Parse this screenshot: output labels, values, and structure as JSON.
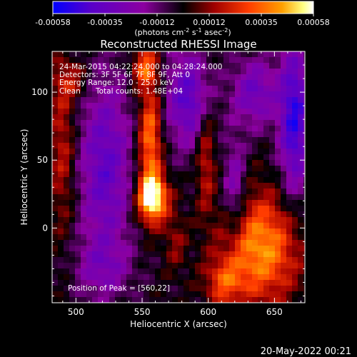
{
  "colorbar": {
    "ticks": [
      "-0.00058",
      "-0.00035",
      "-0.00012",
      "0.00012",
      "0.00035",
      "0.00058"
    ],
    "units_prefix": "(photons cm",
    "units_exp1": "-2",
    "units_mid": " s",
    "units_exp2": "-1",
    "units_mid2": " asec",
    "units_exp3": "-2",
    "units_suffix": ")",
    "colors": [
      "#0000ff",
      "#5a00c8",
      "#8c00a0",
      "#000000",
      "#a00000",
      "#ff3c00",
      "#ffa000",
      "#ffff80",
      "#ffffff"
    ]
  },
  "chart_data": {
    "type": "heatmap",
    "title": "Reconstructed RHESSI Image",
    "xlabel": "Heliocentric X (arcsec)",
    "ylabel": "Heliocentric Y (arcsec)",
    "xlim": [
      482,
      673
    ],
    "ylim": [
      -55,
      130
    ],
    "x_ticks": [
      500,
      550,
      600,
      650
    ],
    "y_ticks": [
      0,
      50,
      100
    ],
    "colorbar_range": [
      -0.00058,
      0.00058
    ],
    "annotations": {
      "time_range": "24-Mar-2015 04:22:24.000 to 04:28:24.000",
      "detectors": "Detectors: 3F 5F 6F 7F 8F 9F, Att 0",
      "energy": "Energy Range: 12.0 - 25.0 keV",
      "clean_label": "Clean",
      "counts": "Total counts: 1.48E+04",
      "peak": "Position of Peak = [560,22]"
    },
    "peak_position": [
      560,
      22
    ]
  },
  "timestamp": "20-May-2022 00:21"
}
